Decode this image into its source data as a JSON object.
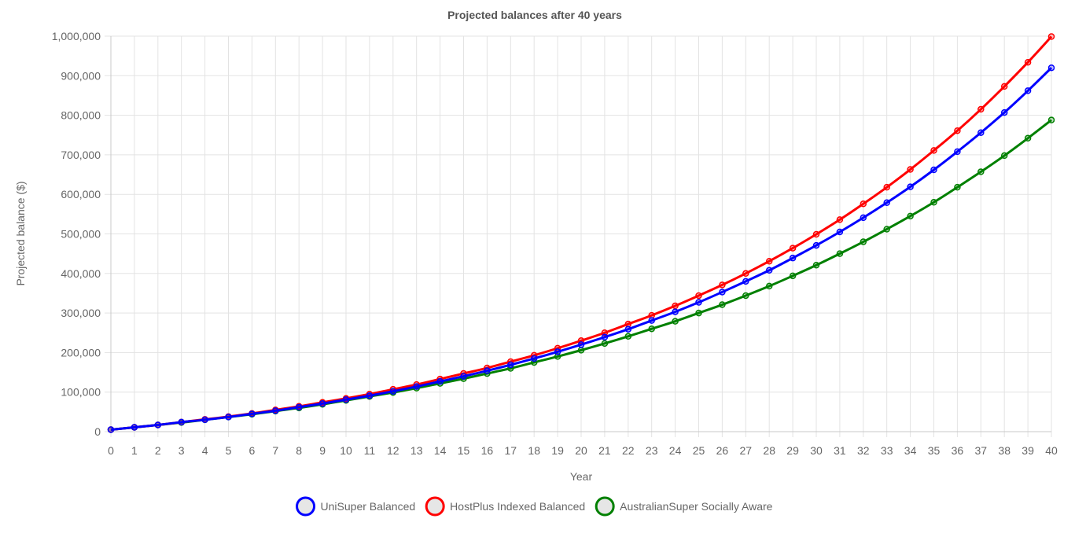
{
  "chart_data": {
    "type": "line",
    "title": "Projected balances after 40 years",
    "xlabel": "Year",
    "ylabel": "Projected balance ($)",
    "x": [
      0,
      1,
      2,
      3,
      4,
      5,
      6,
      7,
      8,
      9,
      10,
      11,
      12,
      13,
      14,
      15,
      16,
      17,
      18,
      19,
      20,
      21,
      22,
      23,
      24,
      25,
      26,
      27,
      28,
      29,
      30,
      31,
      32,
      33,
      34,
      35,
      36,
      37,
      38,
      39,
      40
    ],
    "ylim": [
      0,
      1000000
    ],
    "yticks": [
      0,
      100000,
      200000,
      300000,
      400000,
      500000,
      600000,
      700000,
      800000,
      900000,
      1000000
    ],
    "ytick_labels": [
      "0",
      "100,000",
      "200,000",
      "300,000",
      "400,000",
      "500,000",
      "600,000",
      "700,000",
      "800,000",
      "900,000",
      "1,000,000"
    ],
    "grid": true,
    "legend_position": "bottom",
    "series": [
      {
        "name": "UniSuper Balanced",
        "color": "#0000ff",
        "values": [
          5000,
          11000,
          17000,
          24000,
          30000,
          37000,
          45000,
          53000,
          62000,
          71000,
          81000,
          91000,
          102000,
          114000,
          127000,
          140000,
          154000,
          169000,
          185000,
          202000,
          220000,
          239000,
          259000,
          281000,
          303000,
          327000,
          353000,
          380000,
          408000,
          439000,
          471000,
          505000,
          541000,
          579000,
          619000,
          662000,
          708000,
          756000,
          807000,
          862000,
          920000
        ]
      },
      {
        "name": "HostPlus Indexed Balanced",
        "color": "#ff0000",
        "values": [
          5000,
          11000,
          17000,
          24000,
          31000,
          38000,
          46000,
          55000,
          64000,
          74000,
          84000,
          95000,
          107000,
          119000,
          133000,
          147000,
          161000,
          177000,
          193000,
          211000,
          230000,
          250000,
          272000,
          294000,
          318000,
          344000,
          371000,
          400000,
          431000,
          464000,
          499000,
          536000,
          576000,
          618000,
          663000,
          711000,
          761000,
          815000,
          873000,
          934000,
          999000
        ]
      },
      {
        "name": "AustralianSuper Socially Aware",
        "color": "#008000",
        "values": [
          5000,
          11000,
          17000,
          23000,
          30000,
          37000,
          44000,
          52000,
          60000,
          69000,
          79000,
          89000,
          99000,
          110000,
          122000,
          134000,
          147000,
          160000,
          175000,
          190000,
          206000,
          223000,
          241000,
          260000,
          279000,
          300000,
          321000,
          344000,
          368000,
          394000,
          421000,
          450000,
          480000,
          512000,
          545000,
          580000,
          618000,
          657000,
          698000,
          742000,
          788000
        ]
      }
    ]
  }
}
